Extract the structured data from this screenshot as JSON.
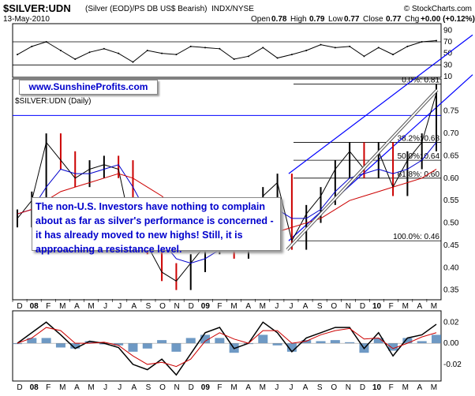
{
  "header": {
    "symbol": "$SILVER:UDN",
    "description": "(Silver (EOD)/PS DB US$ Bearish)",
    "exchange": "INDX/NYSE",
    "date": "13-May-2010",
    "watermark": "© StockCharts.com",
    "open_label": "Open",
    "open": "0.78",
    "high_label": "High",
    "high": "0.79",
    "low_label": "Low",
    "low": "0.77",
    "close_label": "Close",
    "close": "0.77",
    "chg_label": "Chg",
    "chg": "+0.00 (+0.12%)"
  },
  "site_label": "www.SunshineProfits.com",
  "main_label": "$SILVER:UDN (Daily)",
  "annotation": "The non-U.S. Investors have nothing to complain about as far as silver's performance is concerned - it has already moved to new highs! Still, it is approaching a resistance level.",
  "months_axis": [
    "D",
    "08",
    "F",
    "M",
    "A",
    "M",
    "J",
    "J",
    "A",
    "S",
    "O",
    "N",
    "D",
    "09",
    "F",
    "M",
    "A",
    "M",
    "J",
    "J",
    "A",
    "S",
    "O",
    "N",
    "D",
    "10",
    "F",
    "M",
    "A",
    "M"
  ],
  "colors": {
    "price": "#000000",
    "up_bar": "#000000",
    "down_bar": "#cc0000",
    "ma_short": "#0000cc",
    "ma_long": "#cc0000",
    "channel": "#0000ff",
    "resistance": "#ffffff",
    "macd_hist": "#4a7fb5",
    "site_label": "#0000cc",
    "annotation": "#0000cc"
  },
  "chart_data": [
    {
      "name": "rsi",
      "type": "line",
      "y_ticks": [
        10,
        30,
        50,
        70,
        90
      ],
      "ylim": [
        10,
        100
      ],
      "reference_lines": [
        30,
        70
      ],
      "x": [
        "2007-12",
        "2008-01",
        "2008-02",
        "2008-03",
        "2008-04",
        "2008-05",
        "2008-06",
        "2008-07",
        "2008-08",
        "2008-09",
        "2008-10",
        "2008-11",
        "2008-12",
        "2009-01",
        "2009-02",
        "2009-03",
        "2009-04",
        "2009-05",
        "2009-06",
        "2009-07",
        "2009-08",
        "2009-09",
        "2009-10",
        "2009-11",
        "2009-12",
        "2010-01",
        "2010-02",
        "2010-03",
        "2010-04",
        "2010-05"
      ],
      "values": [
        48,
        62,
        70,
        55,
        40,
        52,
        58,
        50,
        35,
        55,
        50,
        48,
        62,
        60,
        58,
        40,
        45,
        60,
        42,
        48,
        55,
        65,
        60,
        62,
        45,
        60,
        48,
        62,
        70,
        72
      ]
    },
    {
      "name": "price",
      "type": "line",
      "title": "$SILVER:UDN (Daily)",
      "y_ticks": [
        0.35,
        0.4,
        0.45,
        0.5,
        0.55,
        0.6,
        0.65,
        0.7,
        0.75
      ],
      "ylim": [
        0.33,
        0.82
      ],
      "x": [
        "2007-12",
        "2008-01",
        "2008-02",
        "2008-03",
        "2008-04",
        "2008-05",
        "2008-06",
        "2008-07",
        "2008-08",
        "2008-09",
        "2008-10",
        "2008-11",
        "2008-12",
        "2009-01",
        "2009-02",
        "2009-03",
        "2009-04",
        "2009-05",
        "2009-06",
        "2009-07",
        "2009-08",
        "2009-09",
        "2009-10",
        "2009-11",
        "2009-12",
        "2010-01",
        "2010-02",
        "2010-03",
        "2010-04",
        "2010-05"
      ],
      "series": [
        {
          "values": [
            0.51,
            0.55,
            0.68,
            0.64,
            0.6,
            0.62,
            0.63,
            0.62,
            0.47,
            0.45,
            0.39,
            0.37,
            0.41,
            0.45,
            0.49,
            0.44,
            0.46,
            0.56,
            0.59,
            0.46,
            0.52,
            0.56,
            0.62,
            0.66,
            0.62,
            0.66,
            0.58,
            0.64,
            0.68,
            0.79
          ]
        },
        {
          "values": [
            0.52,
            0.53,
            0.58,
            0.62,
            0.61,
            0.61,
            0.62,
            0.63,
            0.58,
            0.52,
            0.46,
            0.42,
            0.41,
            0.42,
            0.44,
            0.45,
            0.46,
            0.49,
            0.53,
            0.51,
            0.51,
            0.53,
            0.57,
            0.6,
            0.61,
            0.62,
            0.61,
            0.62,
            0.64,
            0.68
          ]
        },
        {
          "values": [
            0.52,
            0.53,
            0.55,
            0.57,
            0.58,
            0.59,
            0.6,
            0.61,
            0.6,
            0.58,
            0.56,
            0.53,
            0.51,
            0.48,
            0.47,
            0.46,
            0.46,
            0.47,
            0.48,
            0.49,
            0.5,
            0.51,
            0.53,
            0.55,
            0.56,
            0.57,
            0.58,
            0.59,
            0.6,
            0.62
          ]
        }
      ],
      "fibonacci_labels": [
        "0.0%: 0.81",
        "38.2%: 0.68",
        "50.0%: 0.64",
        "61.8%: 0.60",
        "100.0%: 0.46"
      ]
    },
    {
      "name": "macd",
      "type": "line",
      "y_ticks": [
        -0.02,
        0.0,
        0.02
      ],
      "ylim": [
        -0.035,
        0.03
      ],
      "x": [
        "2007-12",
        "2008-01",
        "2008-02",
        "2008-03",
        "2008-04",
        "2008-05",
        "2008-06",
        "2008-07",
        "2008-08",
        "2008-09",
        "2008-10",
        "2008-11",
        "2008-12",
        "2009-01",
        "2009-02",
        "2009-03",
        "2009-04",
        "2009-05",
        "2009-06",
        "2009-07",
        "2009-08",
        "2009-09",
        "2009-10",
        "2009-11",
        "2009-12",
        "2010-01",
        "2010-02",
        "2010-03",
        "2010-04",
        "2010-05"
      ],
      "series": [
        {
          "values": [
            0.0,
            0.01,
            0.02,
            0.008,
            -0.005,
            0.002,
            0.0,
            -0.004,
            -0.02,
            -0.025,
            -0.015,
            -0.03,
            -0.01,
            0.01,
            0.015,
            -0.005,
            0.0,
            0.02,
            0.01,
            -0.008,
            0.005,
            0.01,
            0.015,
            0.015,
            -0.005,
            0.01,
            -0.012,
            0.005,
            0.008,
            0.018
          ]
        },
        {
          "values": [
            0.0,
            0.005,
            0.015,
            0.012,
            0.0,
            0.0,
            0.001,
            -0.002,
            -0.012,
            -0.02,
            -0.018,
            -0.022,
            -0.015,
            0.002,
            0.01,
            0.004,
            0.0,
            0.012,
            0.012,
            0.0,
            0.002,
            0.008,
            0.012,
            0.014,
            0.004,
            0.005,
            -0.005,
            0.0,
            0.006,
            0.01
          ]
        },
        {
          "values": [
            0.0,
            0.005,
            0.005,
            -0.004,
            -0.005,
            0.002,
            -0.001,
            -0.002,
            -0.008,
            -0.005,
            0.003,
            -0.008,
            0.005,
            0.008,
            0.005,
            -0.009,
            0.0,
            0.008,
            -0.002,
            -0.008,
            0.003,
            0.002,
            0.003,
            0.001,
            -0.009,
            0.005,
            -0.007,
            0.005,
            0.002,
            0.008
          ]
        }
      ]
    }
  ]
}
